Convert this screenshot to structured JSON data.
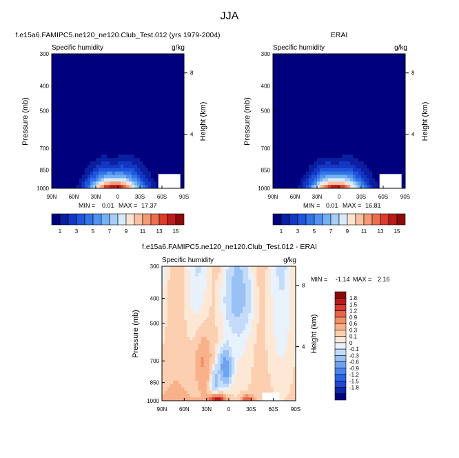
{
  "figure": {
    "title": "JJA"
  },
  "colors": {
    "model_obs_scale": [
      "#00007f",
      "#0a1fa0",
      "#1437c3",
      "#1e55dc",
      "#3274e8",
      "#4f93ee",
      "#74b0f3",
      "#a4cef7",
      "#d8eafb",
      "#fde4d0",
      "#fbc0a0",
      "#f59a74",
      "#ec6e4d",
      "#db3d2c",
      "#bd1b1b",
      "#8c0a0a"
    ],
    "diff_scale": [
      "#00007f",
      "#0a28a8",
      "#1e46cf",
      "#2d63e6",
      "#4a83ee",
      "#6ea3f2",
      "#98c1f6",
      "#c4dcfa",
      "#e8f2fd",
      "#fde8d6",
      "#fbcfb0",
      "#f8b18a",
      "#f38f67",
      "#e8634a",
      "#d83a32",
      "#b51b1b",
      "#8a0909"
    ]
  },
  "chart_data": [
    {
      "type": "heatmap",
      "title": "f.e15a6.FAMIPC5.ne120_ne120.Club_Test.012 (yrs 1979-2004)",
      "left_label": "Specific humidity",
      "right_label": "g/kg",
      "ylabel": "Pressure (mb)",
      "y2label": "Height (km)",
      "x_ticks": [
        "90N",
        "60N",
        "30N",
        "0",
        "30S",
        "60S",
        "90S"
      ],
      "y_ticks": [
        "300",
        "400",
        "500",
        "700",
        "850",
        "1000"
      ],
      "y2_ticks": [
        "8",
        "4"
      ],
      "y_log": true,
      "stats": {
        "min_label": "MIN =",
        "min": "0.01",
        "max_label": "MAX =",
        "max": "17.37"
      },
      "colorbar_labels": [
        "1",
        "3",
        "5",
        "7",
        "9",
        "11",
        "13",
        "15"
      ],
      "field": {
        "kind": "humidity",
        "peak_lat": 5,
        "scale": 1.0
      }
    },
    {
      "type": "heatmap",
      "title": "ERAI",
      "left_label": "Specific humidity",
      "right_label": "g/kg",
      "ylabel": "Pressure (mb)",
      "y2label": "Height (km)",
      "x_ticks": [
        "90N",
        "60N",
        "30N",
        "0",
        "30S",
        "60S",
        "90S"
      ],
      "y_ticks": [
        "300",
        "400",
        "500",
        "700",
        "850",
        "1000"
      ],
      "y2_ticks": [
        "8",
        "4"
      ],
      "y_log": true,
      "stats": {
        "min_label": "MIN =",
        "min": "0.01",
        "max_label": "MAX =",
        "max": "16.81"
      },
      "colorbar_labels": [
        "1",
        "3",
        "5",
        "7",
        "9",
        "11",
        "13",
        "15"
      ],
      "field": {
        "kind": "humidity",
        "peak_lat": 5,
        "scale": 0.97
      }
    },
    {
      "type": "heatmap",
      "title": "f.e15a6.FAMIPC5.ne120_ne120.Club_Test.012 - ERAI",
      "left_label": "Specific humidity",
      "right_label": "g/kg",
      "ylabel": "Pressure (mb)",
      "y2label": "Height (km)",
      "x_ticks": [
        "90N",
        "60N",
        "30N",
        "0",
        "30S",
        "60S",
        "90S"
      ],
      "y_ticks": [
        "300",
        "400",
        "500",
        "700",
        "850",
        "1000"
      ],
      "y2_ticks": [
        "8",
        "4"
      ],
      "y_log": true,
      "stats": {
        "min_label": "MIN =",
        "min": "-1.14",
        "max_label": "MAX =",
        "max": "2.16"
      },
      "colorbar_labels": [
        "1.8",
        "1.5",
        "1.2",
        "0.9",
        "0.6",
        "0.3",
        "0.1",
        "0",
        "-0.1",
        "-0.3",
        "-0.6",
        "-0.9",
        "-1.2",
        "-1.5",
        "-1.8"
      ],
      "field": {
        "kind": "difference"
      }
    }
  ]
}
